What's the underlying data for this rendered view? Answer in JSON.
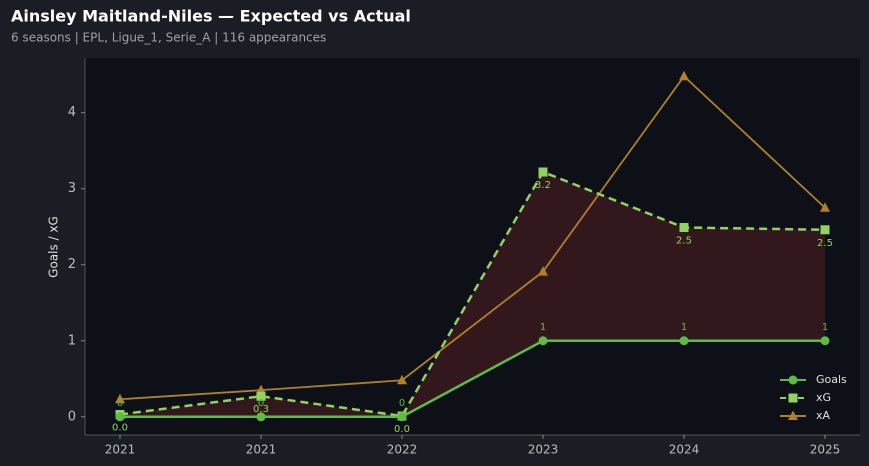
{
  "chart_data": {
    "type": "line",
    "title": "Ainsley Maitland-Niles — Expected vs Actual",
    "subtitle": "6 seasons | EPL, Ligue_1, Serie_A | 116 appearances",
    "y_label": "Goals / xG",
    "categories": [
      "2021",
      "2021",
      "2022",
      "2023",
      "2024",
      "2025"
    ],
    "series": [
      {
        "name": "Goals",
        "color": "#5dbb46",
        "marker": "circle",
        "dashed": false,
        "values": [
          0,
          0,
          0,
          1,
          1,
          1
        ],
        "label_position": "above"
      },
      {
        "name": "xG",
        "color": "#8fd460",
        "marker": "square",
        "dashed": true,
        "values": [
          0.03,
          0.27,
          0.01,
          3.22,
          2.49,
          2.46
        ],
        "value_labels": [
          "0.0",
          "0.3",
          "0.0",
          "3.2",
          "2.5",
          "2.5"
        ],
        "label_position": "below"
      },
      {
        "name": "xA",
        "color": "#b07f28",
        "marker": "triangle",
        "dashed": false,
        "values": [
          0.23,
          0.35,
          0.48,
          1.91,
          4.48,
          2.75
        ]
      }
    ],
    "fill_between": [
      "xG",
      "Goals"
    ],
    "ylim": [
      -0.24,
      4.72
    ],
    "yticks": [
      0,
      1,
      2,
      3,
      4
    ],
    "legend": "lower right"
  }
}
